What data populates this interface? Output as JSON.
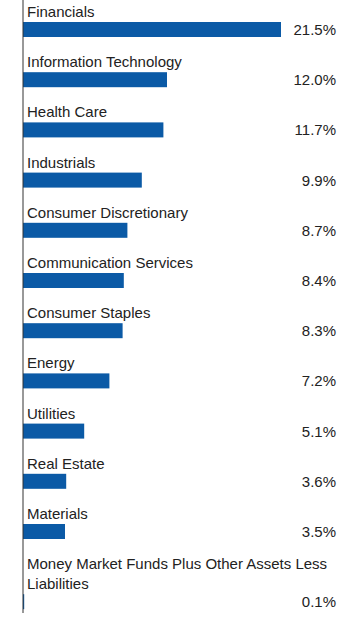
{
  "chart_data": {
    "type": "bar",
    "orientation": "horizontal",
    "categories": [
      "Financials",
      "Information Technology",
      "Health Care",
      "Industrials",
      "Consumer Discretionary",
      "Communication Services",
      "Consumer Staples",
      "Energy",
      "Utilities",
      "Real Estate",
      "Materials",
      "Money Market Funds Plus Other Assets Less Liabilities"
    ],
    "values": [
      21.5,
      12.0,
      11.7,
      9.9,
      8.7,
      8.4,
      8.3,
      7.2,
      5.1,
      3.6,
      3.5,
      0.1
    ],
    "value_labels": [
      "21.5%",
      "12.0%",
      "11.7%",
      "9.9%",
      "8.7%",
      "8.4%",
      "8.3%",
      "7.2%",
      "5.1%",
      "3.6%",
      "3.5%",
      "0.1%"
    ],
    "color": "#0b5aa6",
    "xlim": [
      0,
      21.5
    ],
    "data_labels": true,
    "tick_labels": false,
    "grid": false
  }
}
